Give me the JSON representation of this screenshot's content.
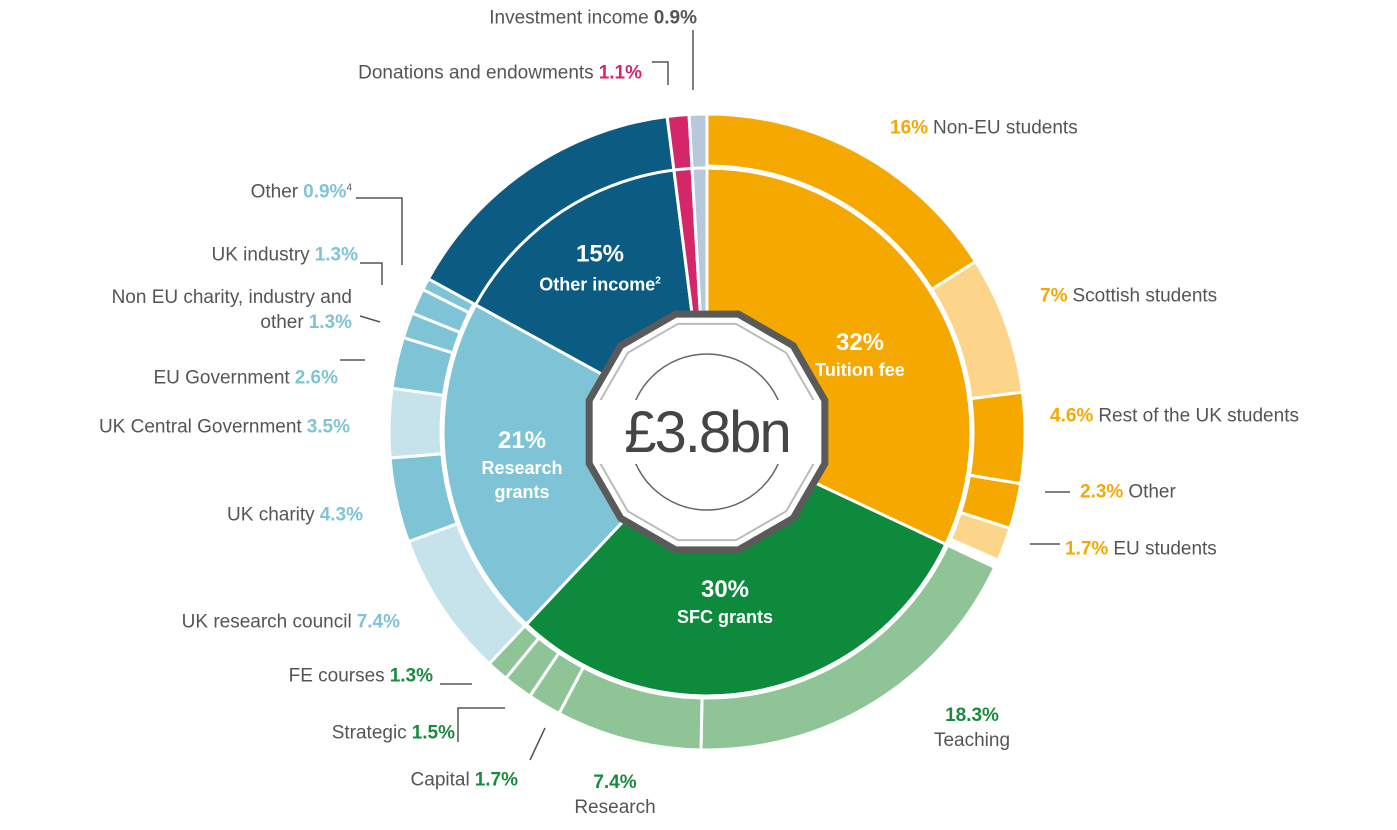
{
  "chart_data": {
    "type": "nested-donut",
    "center_label": "£3.8bn",
    "groups": [
      {
        "name": "Tuition fee",
        "value": 32,
        "value_label": "32%",
        "color": "#f5a800",
        "label_color": "#f5a800",
        "children": [
          {
            "name": "Non-EU students",
            "value": 16,
            "value_label": "16%",
            "color": "#f5a800"
          },
          {
            "name": "Scottish students",
            "value": 7,
            "value_label": "7%",
            "color": "#fdd58a"
          },
          {
            "name": "Rest of the UK students",
            "value": 4.6,
            "value_label": "4.6%",
            "color": "#f5a800"
          },
          {
            "name": "Other",
            "value": 2.3,
            "value_label": "2.3%",
            "color": "#f5a800"
          },
          {
            "name": "EU students",
            "value": 1.7,
            "value_label": "1.7%",
            "color": "#fdd58a"
          }
        ]
      },
      {
        "name": "SFC grants",
        "value": 30,
        "value_label": "30%",
        "color": "#0d8a3c",
        "label_color": "#1a8a3e",
        "children": [
          {
            "name": "Teaching",
            "value": 18.3,
            "value_label": "18.3%",
            "color": "#8fc596"
          },
          {
            "name": "Research",
            "value": 7.4,
            "value_label": "7.4%",
            "color": "#8fc596"
          },
          {
            "name": "Capital",
            "value": 1.7,
            "value_label": "1.7%",
            "color": "#8fc596"
          },
          {
            "name": "Strategic",
            "value": 1.5,
            "value_label": "1.5%",
            "color": "#8fc596"
          },
          {
            "name": "FE courses",
            "value": 1.3,
            "value_label": "1.3%",
            "color": "#8fc596"
          }
        ]
      },
      {
        "name": "Research grants",
        "value": 21,
        "value_label": "21%",
        "color": "#7fc4d6",
        "label_color": "#7fc4d6",
        "children": [
          {
            "name": "UK research council",
            "value": 7.4,
            "value_label": "7.4%",
            "color": "#c6e3ec"
          },
          {
            "name": "UK charity",
            "value": 4.3,
            "value_label": "4.3%",
            "color": "#7fc4d6"
          },
          {
            "name": "UK Central Government",
            "value": 3.5,
            "value_label": "3.5%",
            "color": "#c6e3ec"
          },
          {
            "name": "EU Government",
            "value": 2.6,
            "value_label": "2.6%",
            "color": "#7fc4d6"
          },
          {
            "name": "Non EU charity, industry and other",
            "value": 1.3,
            "value_label": "1.3%",
            "color": "#7fc4d6"
          },
          {
            "name": "UK industry",
            "value": 1.3,
            "value_label": "1.3%",
            "color": "#7fc4d6"
          },
          {
            "name": "Other",
            "value": 0.9,
            "value_label": "0.9%",
            "color": "#7fc4d6",
            "footnote": "4"
          }
        ]
      },
      {
        "name": "Other income",
        "value": 15,
        "value_label": "15%",
        "color": "#0c5b82",
        "label_color": "#0c5b82",
        "footnote": "2",
        "children": []
      },
      {
        "name": "Donations and endowments",
        "value": 1.1,
        "value_label": "1.1%",
        "color": "#d6266a",
        "label_color": "#d6266a",
        "children": []
      },
      {
        "name": "Investment income",
        "value": 0.9,
        "value_label": "0.9%",
        "color": "#b8c8dc",
        "label_color": "#555555",
        "children": []
      }
    ]
  }
}
